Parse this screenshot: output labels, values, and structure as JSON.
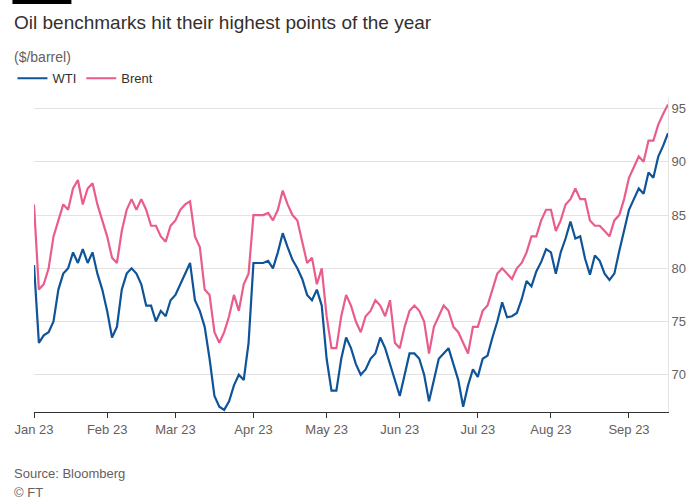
{
  "chart_data": {
    "type": "line",
    "title": "Oil benchmarks hit their highest points of the year",
    "subtitle": "($/barrel)",
    "annotations": [
      "Source: Bloomberg",
      "© FT"
    ],
    "categories": [
      "Jan 23",
      null,
      null,
      null,
      null,
      null,
      null,
      null,
      null,
      null,
      null,
      null,
      null,
      null,
      null,
      "Feb 23",
      null,
      null,
      null,
      null,
      null,
      null,
      null,
      null,
      null,
      null,
      null,
      null,
      null,
      "Mar 23",
      null,
      null,
      null,
      null,
      null,
      null,
      null,
      null,
      null,
      null,
      null,
      null,
      null,
      null,
      null,
      "Apr 23",
      null,
      null,
      null,
      null,
      null,
      null,
      null,
      null,
      null,
      null,
      null,
      null,
      null,
      null,
      "May 23",
      null,
      null,
      null,
      null,
      null,
      null,
      null,
      null,
      null,
      null,
      null,
      null,
      null,
      null,
      "Jun 23",
      null,
      null,
      null,
      null,
      null,
      null,
      null,
      null,
      null,
      null,
      null,
      null,
      null,
      null,
      null,
      "Jul 23",
      null,
      null,
      null,
      null,
      null,
      null,
      null,
      null,
      null,
      null,
      null,
      null,
      null,
      null,
      "Aug 23",
      null,
      null,
      null,
      null,
      null,
      null,
      null,
      null,
      null,
      null,
      null,
      null,
      null,
      null,
      null,
      "Sep 23",
      null,
      null,
      null,
      null,
      null,
      null,
      null,
      null
    ],
    "series": [
      {
        "name": "WTI",
        "color": "#0f5499",
        "values": [
          80.3,
          73,
          73.7,
          74,
          75,
          78,
          79.5,
          80,
          81.5,
          80.5,
          81.8,
          80.5,
          81.5,
          79.5,
          78,
          76,
          73.5,
          74.5,
          78,
          79.5,
          80,
          79.5,
          78.5,
          76.5,
          76.5,
          75,
          76,
          75.5,
          77,
          77.5,
          78.5,
          79.5,
          80.5,
          77,
          76,
          74.5,
          71.5,
          68,
          67,
          66.7,
          67.5,
          69,
          70,
          69.5,
          73,
          80.5,
          80.5,
          80.5,
          80.7,
          80,
          81.5,
          83.3,
          82,
          80.8,
          80,
          79,
          77.5,
          77,
          78,
          76.5,
          71.5,
          68.5,
          68.5,
          71.5,
          73.5,
          72.5,
          71,
          70,
          70.5,
          71.5,
          72,
          73.5,
          72.5,
          71,
          69.5,
          68,
          70,
          72,
          72,
          71.5,
          70,
          67.5,
          69.5,
          71.5,
          72,
          72.5,
          71,
          69.5,
          67,
          69,
          70.5,
          69.8,
          71.5,
          71.8,
          73.5,
          75,
          76.8,
          75.4,
          75.5,
          75.8,
          77.1,
          78.8,
          78.3,
          79.7,
          80.6,
          81.8,
          81.5,
          79.5,
          81.5,
          82.8,
          84.4,
          82.8,
          83,
          80.9,
          79.4,
          81.2,
          80.7,
          79.5,
          78.9,
          79.5,
          81.6,
          83.6,
          85.5,
          86.5,
          87.5,
          87,
          89,
          88.5,
          90.5,
          91.5,
          92.7
        ]
      },
      {
        "name": "Brent",
        "color": "#e95d8c",
        "values": [
          86,
          78,
          78.5,
          80,
          83,
          84.5,
          86,
          85.5,
          87.5,
          88.3,
          86,
          87.5,
          88,
          86,
          84.5,
          83,
          81,
          80.5,
          83.5,
          85.5,
          86.5,
          85.5,
          86.5,
          85.5,
          84,
          84,
          83,
          82.5,
          84,
          84.5,
          85.5,
          86,
          86.3,
          83,
          82,
          78,
          77.5,
          74,
          73,
          74,
          75.5,
          77.5,
          76,
          78.5,
          79.5,
          85,
          85,
          85,
          85.2,
          84.5,
          85.5,
          87.3,
          86,
          85,
          84.5,
          82.5,
          80.5,
          81,
          78.5,
          80,
          75.5,
          72.5,
          72.5,
          75.5,
          77.5,
          76.5,
          75,
          74,
          75.5,
          76,
          77,
          76.5,
          75.5,
          77,
          73,
          72.5,
          74.5,
          76,
          76.5,
          76,
          75,
          72,
          74.5,
          75.5,
          76.5,
          76,
          74.5,
          74,
          73,
          72,
          74.5,
          74.5,
          76,
          76.5,
          78,
          79.5,
          80,
          79.5,
          79,
          80,
          80.5,
          81.5,
          83,
          83,
          84.5,
          85.5,
          85.5,
          83.5,
          84.5,
          86,
          86.5,
          87.5,
          86.5,
          86.5,
          84.5,
          84,
          84,
          83.5,
          83,
          84.5,
          85,
          86.5,
          88.5,
          89.5,
          90.5,
          90,
          92,
          92,
          93.5,
          94.5,
          95.4
        ]
      }
    ],
    "ylim": [
      66.5,
      96
    ],
    "yticks": [
      70,
      75,
      80,
      85,
      90,
      95
    ],
    "grid": true,
    "legend": "top left"
  }
}
